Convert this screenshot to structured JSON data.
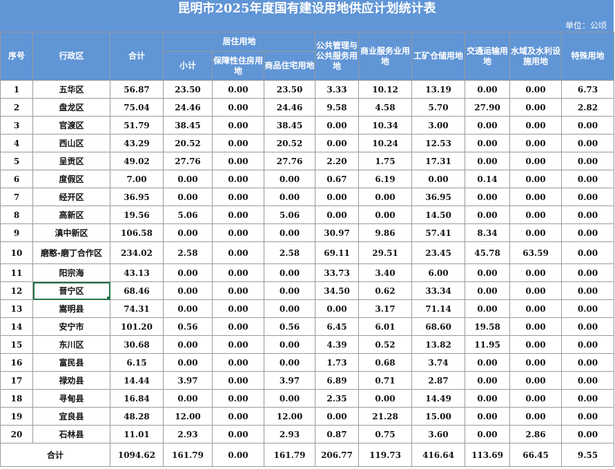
{
  "title": "昆明市2025年度国有建设用地供应计划统计表",
  "unit": "单位：公顷",
  "headers": {
    "no": "序号",
    "district": "行政区",
    "total": "合计",
    "residential": "居住用地",
    "subtotal": "小计",
    "affordable": "保障性住房用地",
    "commercial_housing": "商品住宅用地",
    "public": "公共管理与公共服务用地",
    "business": "商业服务业用地",
    "industrial": "工矿仓储用地",
    "transport": "交通运输用地",
    "water": "水域及水利设施用地",
    "special": "特殊用地"
  },
  "rows": [
    {
      "no": "1",
      "district": "五华区",
      "total": "56.87",
      "subtotal": "23.50",
      "affordable": "0.00",
      "commercial": "23.50",
      "public": "3.33",
      "business": "10.12",
      "industrial": "13.19",
      "transport": "0.00",
      "water": "0.00",
      "special": "6.73"
    },
    {
      "no": "2",
      "district": "盘龙区",
      "total": "75.04",
      "subtotal": "24.46",
      "affordable": "0.00",
      "commercial": "24.46",
      "public": "9.58",
      "business": "4.58",
      "industrial": "5.70",
      "transport": "27.90",
      "water": "0.00",
      "special": "2.82"
    },
    {
      "no": "3",
      "district": "官渡区",
      "total": "51.79",
      "subtotal": "38.45",
      "affordable": "0.00",
      "commercial": "38.45",
      "public": "0.00",
      "business": "10.34",
      "industrial": "3.00",
      "transport": "0.00",
      "water": "0.00",
      "special": "0.00"
    },
    {
      "no": "4",
      "district": "西山区",
      "total": "43.29",
      "subtotal": "20.52",
      "affordable": "0.00",
      "commercial": "20.52",
      "public": "0.00",
      "business": "10.24",
      "industrial": "12.53",
      "transport": "0.00",
      "water": "0.00",
      "special": "0.00"
    },
    {
      "no": "5",
      "district": "呈贡区",
      "total": "49.02",
      "subtotal": "27.76",
      "affordable": "0.00",
      "commercial": "27.76",
      "public": "2.20",
      "business": "1.75",
      "industrial": "17.31",
      "transport": "0.00",
      "water": "0.00",
      "special": "0.00"
    },
    {
      "no": "6",
      "district": "度假区",
      "total": "7.00",
      "subtotal": "0.00",
      "affordable": "0.00",
      "commercial": "0.00",
      "public": "0.67",
      "business": "6.19",
      "industrial": "0.00",
      "transport": "0.14",
      "water": "0.00",
      "special": "0.00"
    },
    {
      "no": "7",
      "district": "经开区",
      "total": "36.95",
      "subtotal": "0.00",
      "affordable": "0.00",
      "commercial": "0.00",
      "public": "0.00",
      "business": "0.00",
      "industrial": "36.95",
      "transport": "0.00",
      "water": "0.00",
      "special": "0.00"
    },
    {
      "no": "8",
      "district": "高新区",
      "total": "19.56",
      "subtotal": "5.06",
      "affordable": "0.00",
      "commercial": "5.06",
      "public": "0.00",
      "business": "0.00",
      "industrial": "14.50",
      "transport": "0.00",
      "water": "0.00",
      "special": "0.00"
    },
    {
      "no": "9",
      "district": "滇中新区",
      "total": "106.58",
      "subtotal": "0.00",
      "affordable": "0.00",
      "commercial": "0.00",
      "public": "30.97",
      "business": "9.86",
      "industrial": "57.41",
      "transport": "8.34",
      "water": "0.00",
      "special": "0.00"
    },
    {
      "no": "10",
      "district": "磨憨-磨丁合作区",
      "total": "234.02",
      "subtotal": "2.58",
      "affordable": "0.00",
      "commercial": "2.58",
      "public": "69.11",
      "business": "29.51",
      "industrial": "23.45",
      "transport": "45.78",
      "water": "63.59",
      "special": "0.00"
    },
    {
      "no": "11",
      "district": "阳宗海",
      "total": "43.13",
      "subtotal": "0.00",
      "affordable": "0.00",
      "commercial": "0.00",
      "public": "33.73",
      "business": "3.40",
      "industrial": "6.00",
      "transport": "0.00",
      "water": "0.00",
      "special": "0.00"
    },
    {
      "no": "12",
      "district": "晋宁区",
      "total": "68.46",
      "subtotal": "0.00",
      "affordable": "0.00",
      "commercial": "0.00",
      "public": "34.50",
      "business": "0.62",
      "industrial": "33.34",
      "transport": "0.00",
      "water": "0.00",
      "special": "0.00"
    },
    {
      "no": "13",
      "district": "嵩明县",
      "total": "74.31",
      "subtotal": "0.00",
      "affordable": "0.00",
      "commercial": "0.00",
      "public": "0.00",
      "business": "3.17",
      "industrial": "71.14",
      "transport": "0.00",
      "water": "0.00",
      "special": "0.00"
    },
    {
      "no": "14",
      "district": "安宁市",
      "total": "101.20",
      "subtotal": "0.56",
      "affordable": "0.00",
      "commercial": "0.56",
      "public": "6.45",
      "business": "6.01",
      "industrial": "68.60",
      "transport": "19.58",
      "water": "0.00",
      "special": "0.00"
    },
    {
      "no": "15",
      "district": "东川区",
      "total": "30.68",
      "subtotal": "0.00",
      "affordable": "0.00",
      "commercial": "0.00",
      "public": "4.39",
      "business": "0.52",
      "industrial": "13.82",
      "transport": "11.95",
      "water": "0.00",
      "special": "0.00"
    },
    {
      "no": "16",
      "district": "富民县",
      "total": "6.15",
      "subtotal": "0.00",
      "affordable": "0.00",
      "commercial": "0.00",
      "public": "1.73",
      "business": "0.68",
      "industrial": "3.74",
      "transport": "0.00",
      "water": "0.00",
      "special": "0.00"
    },
    {
      "no": "17",
      "district": "禄劝县",
      "total": "14.44",
      "subtotal": "3.97",
      "affordable": "0.00",
      "commercial": "3.97",
      "public": "6.89",
      "business": "0.71",
      "industrial": "2.87",
      "transport": "0.00",
      "water": "0.00",
      "special": "0.00"
    },
    {
      "no": "18",
      "district": "寻甸县",
      "total": "16.84",
      "subtotal": "0.00",
      "affordable": "0.00",
      "commercial": "0.00",
      "public": "2.35",
      "business": "0.00",
      "industrial": "14.49",
      "transport": "0.00",
      "water": "0.00",
      "special": "0.00"
    },
    {
      "no": "19",
      "district": "宜良县",
      "total": "48.28",
      "subtotal": "12.00",
      "affordable": "0.00",
      "commercial": "12.00",
      "public": "0.00",
      "business": "21.28",
      "industrial": "15.00",
      "transport": "0.00",
      "water": "0.00",
      "special": "0.00"
    },
    {
      "no": "20",
      "district": "石林县",
      "total": "11.01",
      "subtotal": "2.93",
      "affordable": "0.00",
      "commercial": "2.93",
      "public": "0.87",
      "business": "0.75",
      "industrial": "3.60",
      "transport": "0.00",
      "water": "2.86",
      "special": "0.00"
    }
  ],
  "totals": {
    "label": "合计",
    "total": "1094.62",
    "subtotal": "161.79",
    "affordable": "0.00",
    "commercial": "161.79",
    "public": "206.77",
    "business": "119.73",
    "industrial": "416.64",
    "transport": "113.69",
    "water": "66.45",
    "special": "9.55"
  },
  "selected_row": 12,
  "colors": {
    "header_bg": "#6095d6",
    "header_text": "#ffffff",
    "grid": "#9a9a9a",
    "selection": "#217346"
  }
}
